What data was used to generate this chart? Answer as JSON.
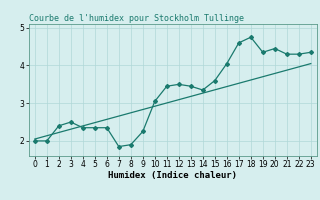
{
  "title": "Courbe de l'humidex pour Stockholm Tullinge",
  "xlabel": "Humidex (Indice chaleur)",
  "background_color": "#d6eeee",
  "line_color": "#1a7a6e",
  "x_data": [
    0,
    1,
    2,
    3,
    4,
    5,
    6,
    7,
    8,
    9,
    10,
    11,
    12,
    13,
    14,
    15,
    16,
    17,
    18,
    19,
    20,
    21,
    22,
    23
  ],
  "y_data": [
    2.0,
    2.0,
    2.4,
    2.5,
    2.35,
    2.35,
    2.35,
    1.85,
    1.9,
    2.25,
    3.05,
    3.45,
    3.5,
    3.45,
    3.35,
    3.6,
    4.05,
    4.6,
    4.75,
    4.35,
    4.45,
    4.3,
    4.3,
    4.35
  ],
  "trend_x": [
    0,
    23
  ],
  "trend_y": [
    2.05,
    4.05
  ],
  "ylim": [
    1.6,
    5.1
  ],
  "xlim": [
    -0.5,
    23.5
  ],
  "yticks": [
    2,
    3,
    4,
    5
  ],
  "xticks": [
    0,
    1,
    2,
    3,
    4,
    5,
    6,
    7,
    8,
    9,
    10,
    11,
    12,
    13,
    14,
    15,
    16,
    17,
    18,
    19,
    20,
    21,
    22,
    23
  ],
  "grid_color": "#b0d8d8",
  "title_fontsize": 6.0,
  "axis_fontsize": 6.5,
  "tick_fontsize": 5.5
}
